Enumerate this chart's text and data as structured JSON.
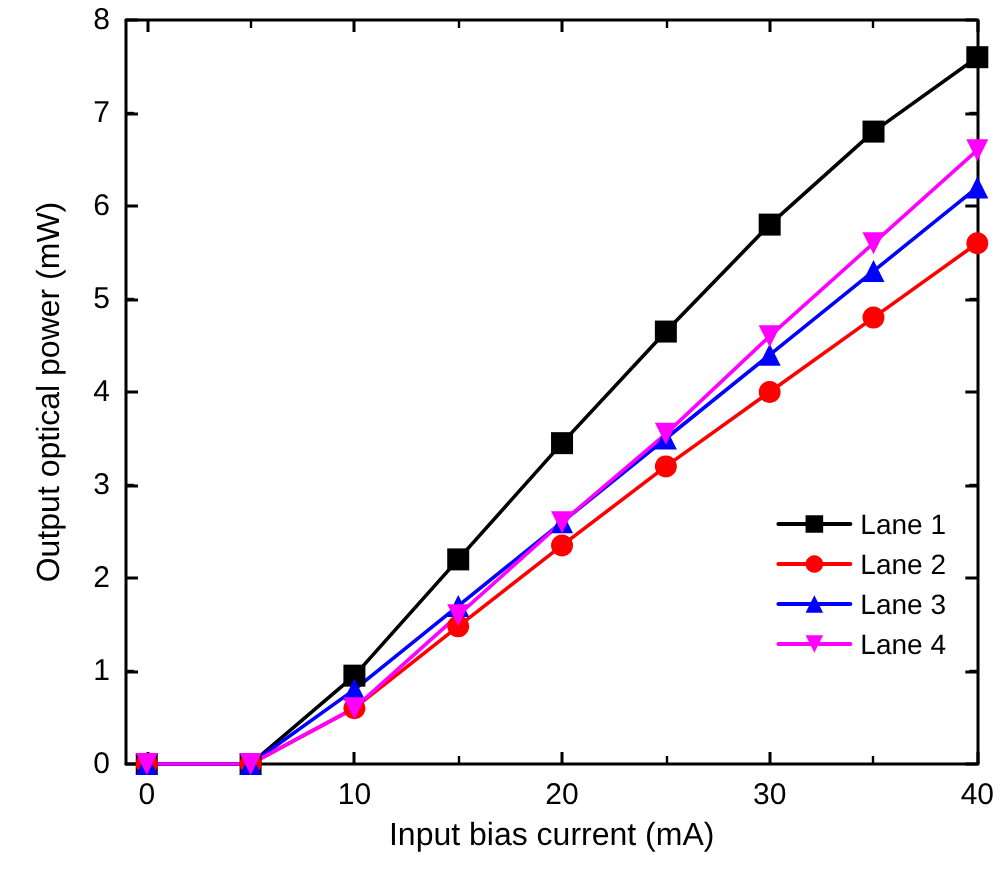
{
  "chart_data": {
    "type": "line",
    "xlabel": "Input bias current (mA)",
    "ylabel": "Output optical power (mW)",
    "x": [
      0,
      5,
      10,
      15,
      20,
      25,
      30,
      35,
      40
    ],
    "series": [
      {
        "name": "Lane 1",
        "color": "#000000",
        "marker": "square",
        "values": [
          0,
          0,
          0.95,
          2.2,
          3.45,
          4.65,
          5.8,
          6.8,
          7.6
        ]
      },
      {
        "name": "Lane 2",
        "color": "#ff0000",
        "marker": "circle",
        "values": [
          0,
          0,
          0.6,
          1.48,
          2.35,
          3.2,
          4.0,
          4.8,
          5.6
        ]
      },
      {
        "name": "Lane 3",
        "color": "#0000ff",
        "marker": "triangle",
        "values": [
          0,
          0,
          0.8,
          1.7,
          2.6,
          3.5,
          4.4,
          5.3,
          6.2
        ]
      },
      {
        "name": "Lane 4",
        "color": "#ff00ff",
        "marker": "triangle-down",
        "values": [
          0,
          0,
          0.6,
          1.6,
          2.6,
          3.55,
          4.6,
          5.6,
          6.6
        ]
      }
    ],
    "xlim": [
      -1,
      40
    ],
    "xticks": [
      0,
      10,
      20,
      30,
      40
    ],
    "ylim": [
      0,
      8
    ],
    "yticks": [
      0,
      1,
      2,
      3,
      4,
      5,
      6,
      7,
      8
    ],
    "grid": false,
    "legend": "right",
    "line_style": "solid"
  }
}
